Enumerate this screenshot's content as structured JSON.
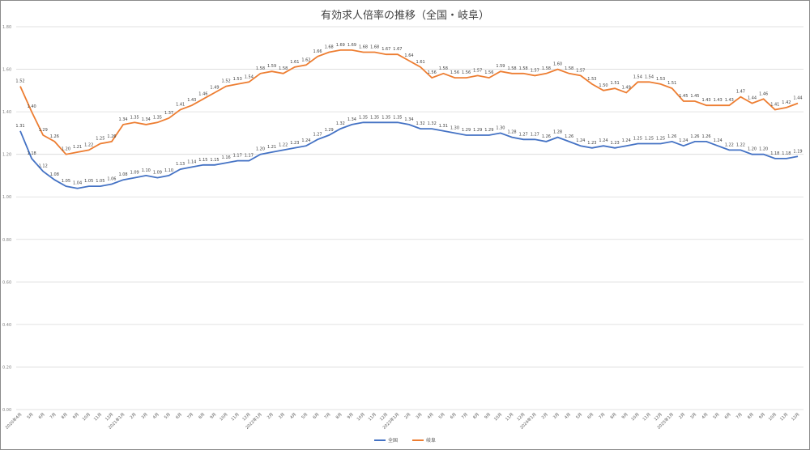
{
  "chart_data": {
    "type": "line",
    "title": "有効求人倍率の推移（全国・岐阜）",
    "xlabel": "",
    "ylabel": "",
    "ylim": [
      0,
      1.8
    ],
    "yticks": [
      "0.00",
      "0.20",
      "0.40",
      "0.60",
      "0.80",
      "1.00",
      "1.20",
      "1.40",
      "1.60",
      "1.80"
    ],
    "grid": true,
    "legend_position": "bottom",
    "categories": [
      "2020年4月",
      "5月",
      "6月",
      "7月",
      "8月",
      "9月",
      "10月",
      "11月",
      "12月",
      "2021年1月",
      "2月",
      "3月",
      "4月",
      "5月",
      "6月",
      "7月",
      "8月",
      "9月",
      "10月",
      "11月",
      "12月",
      "2022年1月",
      "2月",
      "3月",
      "4月",
      "5月",
      "6月",
      "7月",
      "8月",
      "9月",
      "10月",
      "11月",
      "12月",
      "2023年1月",
      "2月",
      "3月",
      "4月",
      "5月",
      "6月",
      "7月",
      "8月",
      "9月",
      "10月",
      "11月",
      "12月",
      "2024年1月",
      "2月",
      "3月",
      "4月",
      "5月",
      "6月",
      "7月",
      "8月",
      "9月",
      "10月",
      "11月",
      "12月",
      "2025年1月",
      "2月",
      "3月",
      "4月",
      "5月",
      "6月",
      "7月",
      "8月",
      "9月",
      "10月",
      "11月",
      "12月"
    ],
    "series": [
      {
        "name": "全国",
        "color": "#4472C4",
        "values": [
          1.31,
          1.18,
          1.12,
          1.08,
          1.05,
          1.04,
          1.05,
          1.05,
          1.06,
          1.08,
          1.09,
          1.1,
          1.09,
          1.1,
          1.13,
          1.14,
          1.15,
          1.15,
          1.16,
          1.17,
          1.17,
          1.2,
          1.21,
          1.22,
          1.23,
          1.24,
          1.27,
          1.29,
          1.32,
          1.34,
          1.35,
          1.35,
          1.35,
          1.35,
          1.34,
          1.32,
          1.32,
          1.31,
          1.3,
          1.29,
          1.29,
          1.29,
          1.3,
          1.28,
          1.27,
          1.27,
          1.26,
          1.28,
          1.26,
          1.24,
          1.23,
          1.24,
          1.23,
          1.24,
          1.25,
          1.25,
          1.25,
          1.26,
          1.24,
          1.26,
          1.26,
          1.24,
          1.22,
          1.22,
          1.2,
          1.2,
          1.18,
          1.18,
          1.19
        ]
      },
      {
        "name": "岐阜",
        "color": "#ED7D31",
        "values": [
          1.52,
          1.4,
          1.29,
          1.26,
          1.2,
          1.21,
          1.22,
          1.25,
          1.26,
          1.34,
          1.35,
          1.34,
          1.35,
          1.37,
          1.41,
          1.43,
          1.46,
          1.49,
          1.52,
          1.53,
          1.54,
          1.58,
          1.59,
          1.58,
          1.61,
          1.62,
          1.66,
          1.68,
          1.69,
          1.69,
          1.68,
          1.68,
          1.67,
          1.67,
          1.64,
          1.61,
          1.56,
          1.58,
          1.56,
          1.56,
          1.57,
          1.56,
          1.59,
          1.58,
          1.58,
          1.57,
          1.58,
          1.6,
          1.58,
          1.57,
          1.53,
          1.5,
          1.51,
          1.49,
          1.54,
          1.54,
          1.53,
          1.51,
          1.45,
          1.45,
          1.43,
          1.43,
          1.43,
          1.47,
          1.44,
          1.46,
          1.41,
          1.42,
          1.44
        ]
      }
    ]
  },
  "legend": {
    "items": [
      {
        "label": "全国",
        "color": "#4472C4"
      },
      {
        "label": "岐阜",
        "color": "#ED7D31"
      }
    ]
  }
}
